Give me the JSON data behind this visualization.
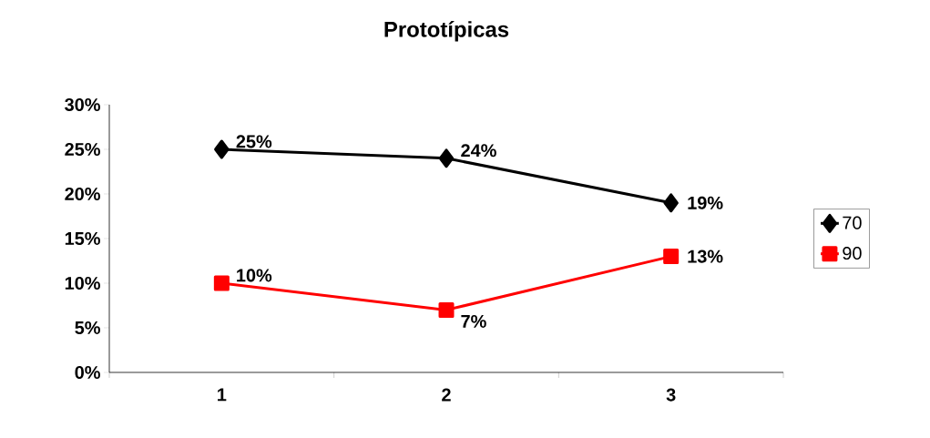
{
  "chart_data": {
    "type": "line",
    "title": "Prototípicas",
    "categories": [
      "1",
      "2",
      "3"
    ],
    "series": [
      {
        "name": "70",
        "color": "#000000",
        "marker": "diamond",
        "values": [
          25,
          24,
          19
        ],
        "value_labels": [
          "25%",
          "24%",
          "19%"
        ]
      },
      {
        "name": "90",
        "color": "#ff0000",
        "marker": "square",
        "values": [
          10,
          7,
          13
        ],
        "value_labels": [
          "10%",
          "7%",
          "13%"
        ]
      }
    ],
    "ylim": [
      0,
      30
    ],
    "yticks": [
      {
        "value": 0,
        "label": "0%"
      },
      {
        "value": 5,
        "label": "5%"
      },
      {
        "value": 10,
        "label": "10%"
      },
      {
        "value": 15,
        "label": "15%"
      },
      {
        "value": 20,
        "label": "20%"
      },
      {
        "value": 25,
        "label": "25%"
      },
      {
        "value": 30,
        "label": "30%"
      }
    ],
    "grid": false,
    "legend": "right",
    "line_style": "solid"
  }
}
